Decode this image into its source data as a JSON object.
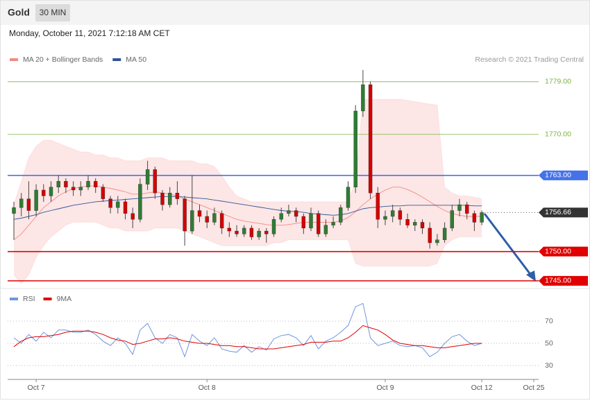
{
  "header": {
    "title": "Gold",
    "timeframe": "30 MIN",
    "timestamp": "Monday, October 11, 2021 7:12:18 AM CET"
  },
  "chart_data": [
    {
      "type": "candlestick",
      "credit": "Research © 2021 Trading Central",
      "up_color": "#2e7d32",
      "down_color": "#d50000",
      "ylim": [
        1743.8,
        1781.7
      ],
      "open": [
        1756.5,
        1757.5,
        1759.0,
        1757.0,
        1760.5,
        1759.5,
        1761.0,
        1762.0,
        1761.0,
        1760.5,
        1761.0,
        1762.0,
        1761.0,
        1759.0,
        1757.5,
        1758.5,
        1756.5,
        1755.5,
        1761.5,
        1764.0,
        1760.0,
        1758.0,
        1760.0,
        1759.0,
        1753.5,
        1757.0,
        1756.0,
        1755.0,
        1756.5,
        1754.0,
        1753.5,
        1753.0,
        1754.0,
        1752.5,
        1753.5,
        1753.0,
        1755.5,
        1756.5,
        1757.0,
        1756.0,
        1754.0,
        1756.5,
        1753.0,
        1754.5,
        1755.0,
        1757.5,
        1761.0,
        1774.0,
        1778.5,
        1760.0,
        1755.5,
        1756.0,
        1757.0,
        1755.5,
        1754.5,
        1755.0,
        1754.0,
        1751.5,
        1752.0,
        1754.0,
        1757.0,
        1758.0,
        1756.5,
        1755.0
      ],
      "high": [
        1758.5,
        1760.0,
        1762.0,
        1761.5,
        1761.5,
        1762.0,
        1763.0,
        1762.5,
        1762.0,
        1762.0,
        1763.0,
        1762.5,
        1761.5,
        1759.5,
        1759.5,
        1759.0,
        1757.5,
        1762.5,
        1765.5,
        1764.5,
        1760.5,
        1761.0,
        1762.0,
        1759.5,
        1763.0,
        1758.0,
        1757.0,
        1757.5,
        1757.0,
        1755.0,
        1754.5,
        1754.5,
        1754.5,
        1754.0,
        1754.0,
        1756.0,
        1757.5,
        1758.0,
        1757.5,
        1756.5,
        1757.5,
        1757.0,
        1755.5,
        1756.0,
        1758.0,
        1762.0,
        1775.0,
        1781.0,
        1779.0,
        1761.0,
        1757.0,
        1758.0,
        1757.5,
        1756.5,
        1755.5,
        1755.5,
        1755.0,
        1753.0,
        1755.0,
        1758.0,
        1759.0,
        1758.5,
        1757.0,
        1757.0
      ],
      "low": [
        1752.0,
        1756.0,
        1755.5,
        1756.0,
        1758.5,
        1758.5,
        1760.0,
        1760.0,
        1759.5,
        1759.5,
        1760.5,
        1760.0,
        1758.5,
        1756.5,
        1756.5,
        1755.5,
        1754.0,
        1755.0,
        1760.5,
        1759.0,
        1757.0,
        1757.5,
        1758.0,
        1751.0,
        1753.0,
        1755.0,
        1754.0,
        1754.5,
        1753.0,
        1752.5,
        1752.5,
        1752.5,
        1752.0,
        1752.0,
        1751.5,
        1752.5,
        1755.0,
        1756.0,
        1755.0,
        1753.0,
        1753.5,
        1752.5,
        1752.5,
        1754.0,
        1754.5,
        1757.0,
        1760.0,
        1773.0,
        1759.0,
        1754.0,
        1754.5,
        1755.0,
        1754.5,
        1754.0,
        1753.5,
        1753.0,
        1750.5,
        1751.0,
        1751.5,
        1753.5,
        1756.0,
        1755.5,
        1753.5,
        1754.5
      ],
      "close": [
        1757.5,
        1759.0,
        1757.0,
        1760.5,
        1759.5,
        1761.0,
        1762.0,
        1761.0,
        1760.5,
        1761.0,
        1762.0,
        1761.0,
        1759.0,
        1757.5,
        1758.5,
        1756.5,
        1755.5,
        1761.5,
        1764.0,
        1760.0,
        1758.0,
        1760.0,
        1759.0,
        1753.5,
        1757.0,
        1756.0,
        1755.0,
        1756.5,
        1754.0,
        1753.5,
        1753.0,
        1754.0,
        1752.5,
        1753.5,
        1753.0,
        1755.5,
        1756.5,
        1757.0,
        1756.0,
        1754.0,
        1756.5,
        1753.0,
        1754.5,
        1755.0,
        1757.5,
        1761.0,
        1774.0,
        1778.5,
        1760.0,
        1755.5,
        1756.0,
        1757.0,
        1755.5,
        1754.5,
        1755.0,
        1754.0,
        1751.5,
        1752.0,
        1754.0,
        1757.0,
        1758.0,
        1756.5,
        1755.0,
        1756.66
      ],
      "series": [
        {
          "name": "MA 20 + Bollinger Bands",
          "color": "#f28b82",
          "band_color": "#fde2e2",
          "values": [
            1752,
            1753,
            1754.5,
            1756,
            1757.5,
            1758.5,
            1759.5,
            1760.2,
            1760.8,
            1761,
            1761.2,
            1761.2,
            1761,
            1760.8,
            1760.5,
            1760.2,
            1759.8,
            1759.8,
            1760,
            1760.2,
            1760,
            1759.8,
            1759.5,
            1759,
            1758.5,
            1758,
            1757.5,
            1757,
            1756.5,
            1756,
            1755.5,
            1755.2,
            1755,
            1754.8,
            1754.6,
            1754.5,
            1754.5,
            1754.6,
            1754.8,
            1755,
            1755,
            1755,
            1755,
            1755,
            1755.2,
            1755.8,
            1756.8,
            1758,
            1759,
            1759.8,
            1760.5,
            1761,
            1761,
            1760.6,
            1760,
            1759.3,
            1758.5,
            1757.7,
            1757,
            1756.5,
            1756.2,
            1756,
            1756,
            1756
          ],
          "upper": [
            1758,
            1762,
            1766,
            1768,
            1769,
            1769,
            1768.5,
            1768,
            1767.5,
            1767,
            1767,
            1766.5,
            1766.5,
            1766,
            1766,
            1765.5,
            1765.5,
            1765.5,
            1766,
            1766,
            1766,
            1765.5,
            1765.5,
            1765.5,
            1765.5,
            1765,
            1765,
            1764.5,
            1763,
            1761,
            1759.5,
            1759,
            1758.5,
            1758.5,
            1758.5,
            1758.5,
            1758.5,
            1758.5,
            1758.5,
            1758.5,
            1758.5,
            1758.5,
            1758.5,
            1758.5,
            1758.5,
            1758.5,
            1762,
            1776,
            1776,
            1776,
            1776,
            1776,
            1776,
            1775.8,
            1775.6,
            1775.4,
            1775.2,
            1775,
            1761,
            1760,
            1759.5,
            1759.5,
            1759.3,
            1759
          ],
          "lower": [
            1746,
            1744.5,
            1746,
            1749,
            1751,
            1752.5,
            1753.5,
            1754.5,
            1755,
            1755,
            1755,
            1755,
            1754.5,
            1754,
            1754,
            1753.5,
            1753.5,
            1753.5,
            1753.5,
            1754,
            1754,
            1754,
            1754,
            1753.5,
            1753,
            1752.5,
            1752,
            1751.5,
            1751,
            1751,
            1751,
            1751,
            1751,
            1751,
            1751,
            1751.5,
            1751.5,
            1752,
            1752,
            1752,
            1752,
            1752,
            1752,
            1752,
            1752,
            1752,
            1748,
            1747.5,
            1747.5,
            1747.5,
            1747.5,
            1747.5,
            1747.5,
            1747.5,
            1747.5,
            1747.5,
            1747.5,
            1748,
            1751,
            1752,
            1752.5,
            1752.5,
            1752.5,
            1752.5
          ]
        },
        {
          "name": "MA 50",
          "color": "#2f5597",
          "values": [
            1755.5,
            1755.7,
            1756,
            1756.3,
            1756.7,
            1757,
            1757.3,
            1757.6,
            1757.9,
            1758.1,
            1758.3,
            1758.5,
            1758.6,
            1758.7,
            1758.8,
            1758.9,
            1759,
            1759.1,
            1759.2,
            1759.3,
            1759.4,
            1759.4,
            1759.4,
            1759.3,
            1759.2,
            1759.1,
            1759,
            1758.8,
            1758.6,
            1758.4,
            1758.2,
            1758,
            1757.8,
            1757.6,
            1757.4,
            1757.2,
            1757,
            1756.9,
            1756.8,
            1756.7,
            1756.5,
            1756.4,
            1756.3,
            1756.2,
            1756.3,
            1756.5,
            1756.9,
            1757.3,
            1757.5,
            1757.6,
            1757.7,
            1757.8,
            1757.8,
            1757.9,
            1757.9,
            1757.9,
            1757.9,
            1757.9,
            1757.9,
            1757.9,
            1757.9,
            1757.9,
            1757.8,
            1757.8
          ]
        }
      ],
      "levels": [
        {
          "value": 1779,
          "label": "1779.00",
          "color": "#7cb342",
          "tag": false
        },
        {
          "value": 1770,
          "label": "1770.00",
          "color": "#7cb342",
          "tag": false
        },
        {
          "value": 1763,
          "label": "1763.00",
          "color": "#4472e8",
          "tag": true
        },
        {
          "value": 1750,
          "label": "1750.00",
          "color": "#e00000",
          "tag": true
        },
        {
          "value": 1745,
          "label": "1745.00",
          "color": "#e00000",
          "tag": true
        }
      ],
      "last_price": 1756.66,
      "last_price_color": "#333333"
    },
    {
      "type": "line",
      "ylim": [
        18.75,
        96.9
      ],
      "yticks": [
        30,
        50,
        70
      ],
      "categories": [
        null,
        null,
        null,
        "Oct 7",
        null,
        null,
        null,
        null,
        null,
        null,
        null,
        null,
        null,
        null,
        null,
        null,
        null,
        null,
        null,
        null,
        null,
        null,
        null,
        null,
        null,
        null,
        "Oct 8",
        null,
        null,
        null,
        null,
        null,
        null,
        null,
        null,
        null,
        null,
        null,
        null,
        null,
        null,
        null,
        null,
        null,
        null,
        null,
        null,
        null,
        null,
        null,
        "Oct 9",
        null,
        null,
        null,
        null,
        null,
        null,
        null,
        null,
        null,
        null,
        null,
        null,
        "Oct 12",
        null,
        null,
        null,
        null,
        null,
        null,
        "Oct 25"
      ],
      "series": [
        {
          "name": "RSI",
          "color": "#6f95e0",
          "values": [
            55,
            50,
            58,
            52,
            60,
            55,
            62,
            62,
            60,
            60,
            62,
            58,
            52,
            48,
            55,
            50,
            40,
            62,
            68,
            55,
            50,
            58,
            55,
            38,
            58,
            52,
            48,
            55,
            45,
            43,
            42,
            48,
            42,
            47,
            44,
            54,
            57,
            58,
            55,
            48,
            57,
            45,
            52,
            55,
            60,
            66,
            83,
            86,
            55,
            48,
            50,
            52,
            48,
            47,
            48,
            46,
            38,
            42,
            50,
            56,
            58,
            52,
            48,
            50,
            null,
            null,
            null,
            null,
            null,
            null,
            null
          ]
        },
        {
          "name": "9MA",
          "color": "#e00000",
          "values": [
            47,
            52,
            55,
            56,
            56,
            57,
            58,
            60,
            61,
            61,
            61,
            60,
            58,
            55,
            53,
            52,
            49,
            50,
            52,
            54,
            54,
            55,
            54,
            52,
            51,
            50,
            50,
            49,
            48,
            48,
            47,
            47,
            46,
            45,
            45,
            45,
            46,
            47,
            48,
            49,
            51,
            51,
            51,
            52,
            52,
            55,
            60,
            66,
            64,
            62,
            58,
            53,
            50,
            49,
            48,
            48,
            47,
            46,
            46,
            47,
            48,
            49,
            50,
            50,
            null,
            null,
            null,
            null,
            null,
            null,
            null
          ]
        }
      ]
    }
  ]
}
